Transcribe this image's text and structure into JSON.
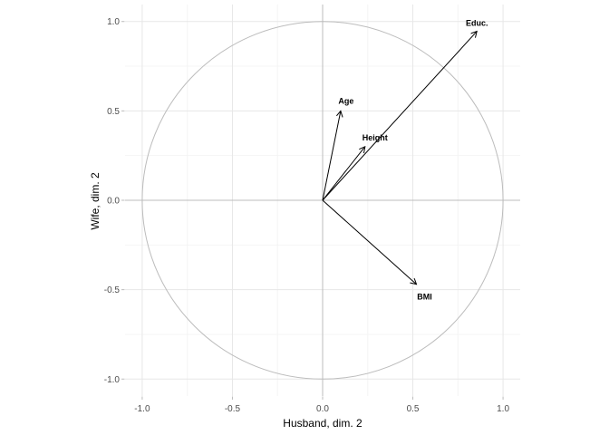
{
  "chart_data": {
    "type": "scatter",
    "subtype": "canonical-correlation-variable-vector-plot",
    "title": "",
    "xlabel": "Husband, dim. 2",
    "ylabel": "Wife, dim. 2",
    "xlim": [
      -1.095,
      1.095
    ],
    "ylim": [
      -1.095,
      1.095
    ],
    "x_tick_values": [
      -1.0,
      -0.5,
      0.0,
      0.5,
      1.0
    ],
    "x_tick_labels": [
      "-1.0",
      "-0.5",
      "0.0",
      "0.5",
      "1.0"
    ],
    "y_tick_values": [
      -1.0,
      -0.5,
      0.0,
      0.5,
      1.0
    ],
    "y_tick_labels": [
      "-1.0",
      "-0.5",
      "0.0",
      "0.5",
      "1.0"
    ],
    "minor_tick_values": [
      -0.75,
      -0.25,
      0.25,
      0.75
    ],
    "grid": "major+minor",
    "legend": "none",
    "reference": {
      "unit_circle": true,
      "hline_y": 0,
      "vline_x": 0
    },
    "vectors": [
      {
        "label": "Age",
        "x": 0.1,
        "y": 0.5,
        "label_x": 0.13,
        "label_y": 0.555
      },
      {
        "label": "Height",
        "x": 0.235,
        "y": 0.3,
        "label_x": 0.29,
        "label_y": 0.35
      },
      {
        "label": "Educ.",
        "x": 0.855,
        "y": 0.945,
        "label_x": 0.855,
        "label_y": 0.99
      },
      {
        "label": "BMI",
        "x": 0.52,
        "y": -0.47,
        "label_x": 0.565,
        "label_y": -0.54
      }
    ],
    "colors": {
      "background": "#ffffff",
      "grid_major": "#e7e7e7",
      "grid_minor": "#f4f4f4",
      "reference": "#bcbcbc",
      "tick_mark": "#bcbcbc",
      "axis_text": "#4d4d4d",
      "axis_title": "#000000",
      "vector": "#000000"
    }
  }
}
